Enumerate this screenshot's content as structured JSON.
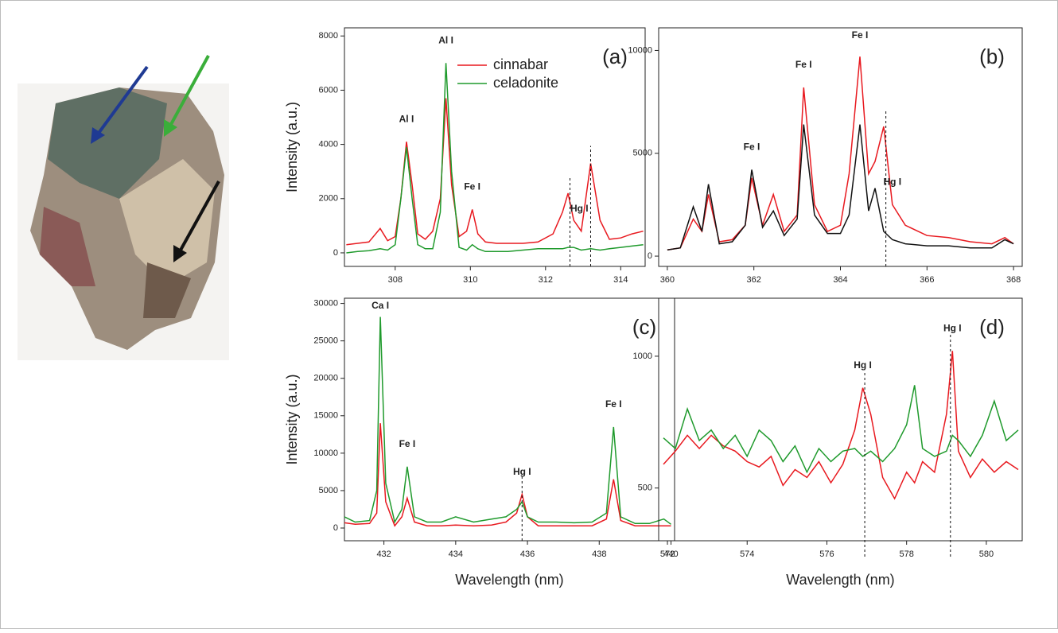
{
  "chart_data": [
    {
      "type": "line",
      "panel_label": "(a)",
      "ylabel": "Intensity (a.u.)",
      "x": [
        306.7,
        307.0,
        307.3,
        307.6,
        307.8,
        308.0,
        308.15,
        308.3,
        308.45,
        308.6,
        308.8,
        309.0,
        309.2,
        309.35,
        309.5,
        309.7,
        309.9,
        310.05,
        310.2,
        310.4,
        310.7,
        311.0,
        311.4,
        311.8,
        312.2,
        312.45,
        312.6,
        312.75,
        312.95,
        313.2,
        313.45,
        313.7,
        314.0,
        314.3,
        314.6
      ],
      "series": [
        {
          "name": "cinnabar",
          "color": "#e8191f",
          "values": [
            300,
            350,
            400,
            900,
            450,
            600,
            2000,
            4100,
            2500,
            700,
            500,
            800,
            2000,
            5700,
            2500,
            600,
            800,
            1600,
            700,
            400,
            350,
            350,
            350,
            400,
            700,
            1500,
            2200,
            1200,
            800,
            3300,
            1200,
            500,
            550,
            700,
            800
          ]
        },
        {
          "name": "celadonite",
          "color": "#1f9a2c",
          "values": [
            0,
            50,
            80,
            150,
            100,
            300,
            2000,
            3900,
            2000,
            300,
            150,
            150,
            1500,
            7000,
            3000,
            200,
            100,
            300,
            150,
            50,
            50,
            50,
            100,
            150,
            150,
            150,
            200,
            200,
            100,
            150,
            100,
            150,
            200,
            250,
            300
          ]
        }
      ],
      "xlim": [
        306.65,
        314.65
      ],
      "ylim": [
        -500,
        8300
      ],
      "xticks": [
        308,
        310,
        312,
        314
      ],
      "yticks": [
        0,
        2000,
        4000,
        6000,
        8000
      ],
      "annotations": [
        {
          "text": "Al I",
          "x": 308.3
        },
        {
          "text": "Al I",
          "x": 309.35
        },
        {
          "text": "Fe I",
          "x": 310.05
        },
        {
          "text": "Hg I",
          "x": 312.9
        }
      ],
      "vlines": [
        312.65,
        313.2
      ],
      "legend": true
    },
    {
      "type": "line",
      "panel_label": "(b)",
      "x": [
        360.0,
        360.3,
        360.6,
        360.8,
        360.95,
        361.2,
        361.5,
        361.8,
        361.95,
        362.2,
        362.45,
        362.7,
        363.0,
        363.15,
        363.4,
        363.7,
        364.0,
        364.2,
        364.45,
        364.65,
        364.8,
        365.0,
        365.2,
        365.5,
        366.0,
        366.5,
        367.0,
        367.5,
        367.8,
        368.0
      ],
      "series": [
        {
          "color": "#e8191f",
          "values": [
            300,
            400,
            1800,
            1200,
            3000,
            700,
            800,
            1500,
            3800,
            1500,
            3000,
            1200,
            2000,
            8200,
            2500,
            1200,
            1500,
            4000,
            9700,
            4000,
            4600,
            6300,
            2500,
            1500,
            1000,
            900,
            700,
            600,
            900,
            600
          ]
        },
        {
          "color": "#111111",
          "values": [
            300,
            400,
            2400,
            1200,
            3500,
            600,
            700,
            1500,
            4200,
            1400,
            2200,
            1000,
            1800,
            6400,
            2000,
            1100,
            1100,
            2000,
            6400,
            2200,
            3300,
            1200,
            800,
            600,
            500,
            500,
            400,
            400,
            800,
            600
          ]
        }
      ],
      "xlim": [
        359.8,
        368.2
      ],
      "ylim": [
        -500,
        11100
      ],
      "xticks": [
        360,
        362,
        364,
        366,
        368
      ],
      "yticks": [
        0,
        5000,
        10000
      ],
      "annotations": [
        {
          "text": "Fe I",
          "x": 361.95
        },
        {
          "text": "Fe I",
          "x": 363.15
        },
        {
          "text": "Fe I",
          "x": 364.45
        },
        {
          "text": "Hg I",
          "x": 365.2
        }
      ],
      "vlines": [
        365.05
      ]
    },
    {
      "type": "line",
      "panel_label": "(c)",
      "ylabel": "Intensity (a.u.)",
      "xlabel": "Wavelength (nm)",
      "x": [
        430.9,
        431.2,
        431.6,
        431.8,
        431.9,
        432.05,
        432.3,
        432.5,
        432.65,
        432.85,
        433.2,
        433.6,
        434.0,
        434.5,
        435.0,
        435.4,
        435.7,
        435.85,
        436.0,
        436.3,
        436.8,
        437.3,
        437.8,
        438.2,
        438.4,
        438.6,
        439.0,
        439.4,
        439.8,
        440.0
      ],
      "series": [
        {
          "name": "cinnabar",
          "color": "#e8191f",
          "values": [
            700,
            500,
            600,
            2000,
            14000,
            3500,
            300,
            1500,
            4000,
            800,
            300,
            300,
            400,
            300,
            400,
            800,
            2000,
            4500,
            1500,
            300,
            300,
            300,
            300,
            1200,
            6500,
            1000,
            300,
            300,
            300,
            300
          ]
        },
        {
          "name": "celadonite",
          "color": "#1f9a2c",
          "values": [
            1500,
            800,
            1000,
            5000,
            28200,
            6000,
            800,
            2500,
            8200,
            1500,
            800,
            800,
            1500,
            800,
            1200,
            1500,
            2500,
            3500,
            1500,
            800,
            800,
            700,
            800,
            2000,
            13500,
            1500,
            600,
            600,
            1200,
            500
          ]
        }
      ],
      "xlim": [
        430.9,
        440.1
      ],
      "ylim": [
        -1700,
        30700
      ],
      "xticks": [
        432,
        434,
        436,
        438,
        440
      ],
      "yticks": [
        0,
        5000,
        10000,
        15000,
        20000,
        25000,
        30000
      ],
      "annotations": [
        {
          "text": "Ca I",
          "x": 431.9
        },
        {
          "text": "Fe I",
          "x": 432.65
        },
        {
          "text": "Hg I",
          "x": 435.85
        },
        {
          "text": "Fe I",
          "x": 438.4
        }
      ],
      "vlines": [
        435.85
      ]
    },
    {
      "type": "line",
      "panel_label": "(d)",
      "xlabel": "Wavelength (nm)",
      "x": [
        571.9,
        572.2,
        572.5,
        572.8,
        573.1,
        573.4,
        573.7,
        574.0,
        574.3,
        574.6,
        574.9,
        575.2,
        575.5,
        575.8,
        576.1,
        576.4,
        576.7,
        576.9,
        577.1,
        577.4,
        577.7,
        578.0,
        578.2,
        578.4,
        578.7,
        579.0,
        579.15,
        579.3,
        579.6,
        579.9,
        580.2,
        580.5,
        580.8
      ],
      "series": [
        {
          "name": "cinnabar",
          "color": "#e8191f",
          "values": [
            590,
            640,
            700,
            650,
            700,
            660,
            640,
            600,
            580,
            620,
            510,
            570,
            540,
            600,
            520,
            590,
            720,
            880,
            780,
            540,
            460,
            560,
            520,
            600,
            560,
            780,
            1020,
            640,
            540,
            610,
            560,
            600,
            570
          ]
        },
        {
          "name": "celadonite",
          "color": "#1f9a2c",
          "values": [
            690,
            650,
            800,
            680,
            720,
            650,
            700,
            620,
            720,
            680,
            600,
            660,
            560,
            650,
            600,
            640,
            650,
            620,
            640,
            600,
            650,
            740,
            890,
            650,
            620,
            640,
            700,
            680,
            620,
            700,
            830,
            680,
            720
          ]
        }
      ],
      "xlim": [
        571.78,
        580.9
      ],
      "ylim": [
        300,
        1220
      ],
      "xticks": [
        572,
        574,
        576,
        578,
        580
      ],
      "yticks": [
        500,
        1000
      ],
      "annotations": [
        {
          "text": "Hg I",
          "x": 576.9
        },
        {
          "text": "Hg I",
          "x": 579.15
        }
      ],
      "vlines": [
        576.95,
        579.1
      ]
    }
  ]
}
